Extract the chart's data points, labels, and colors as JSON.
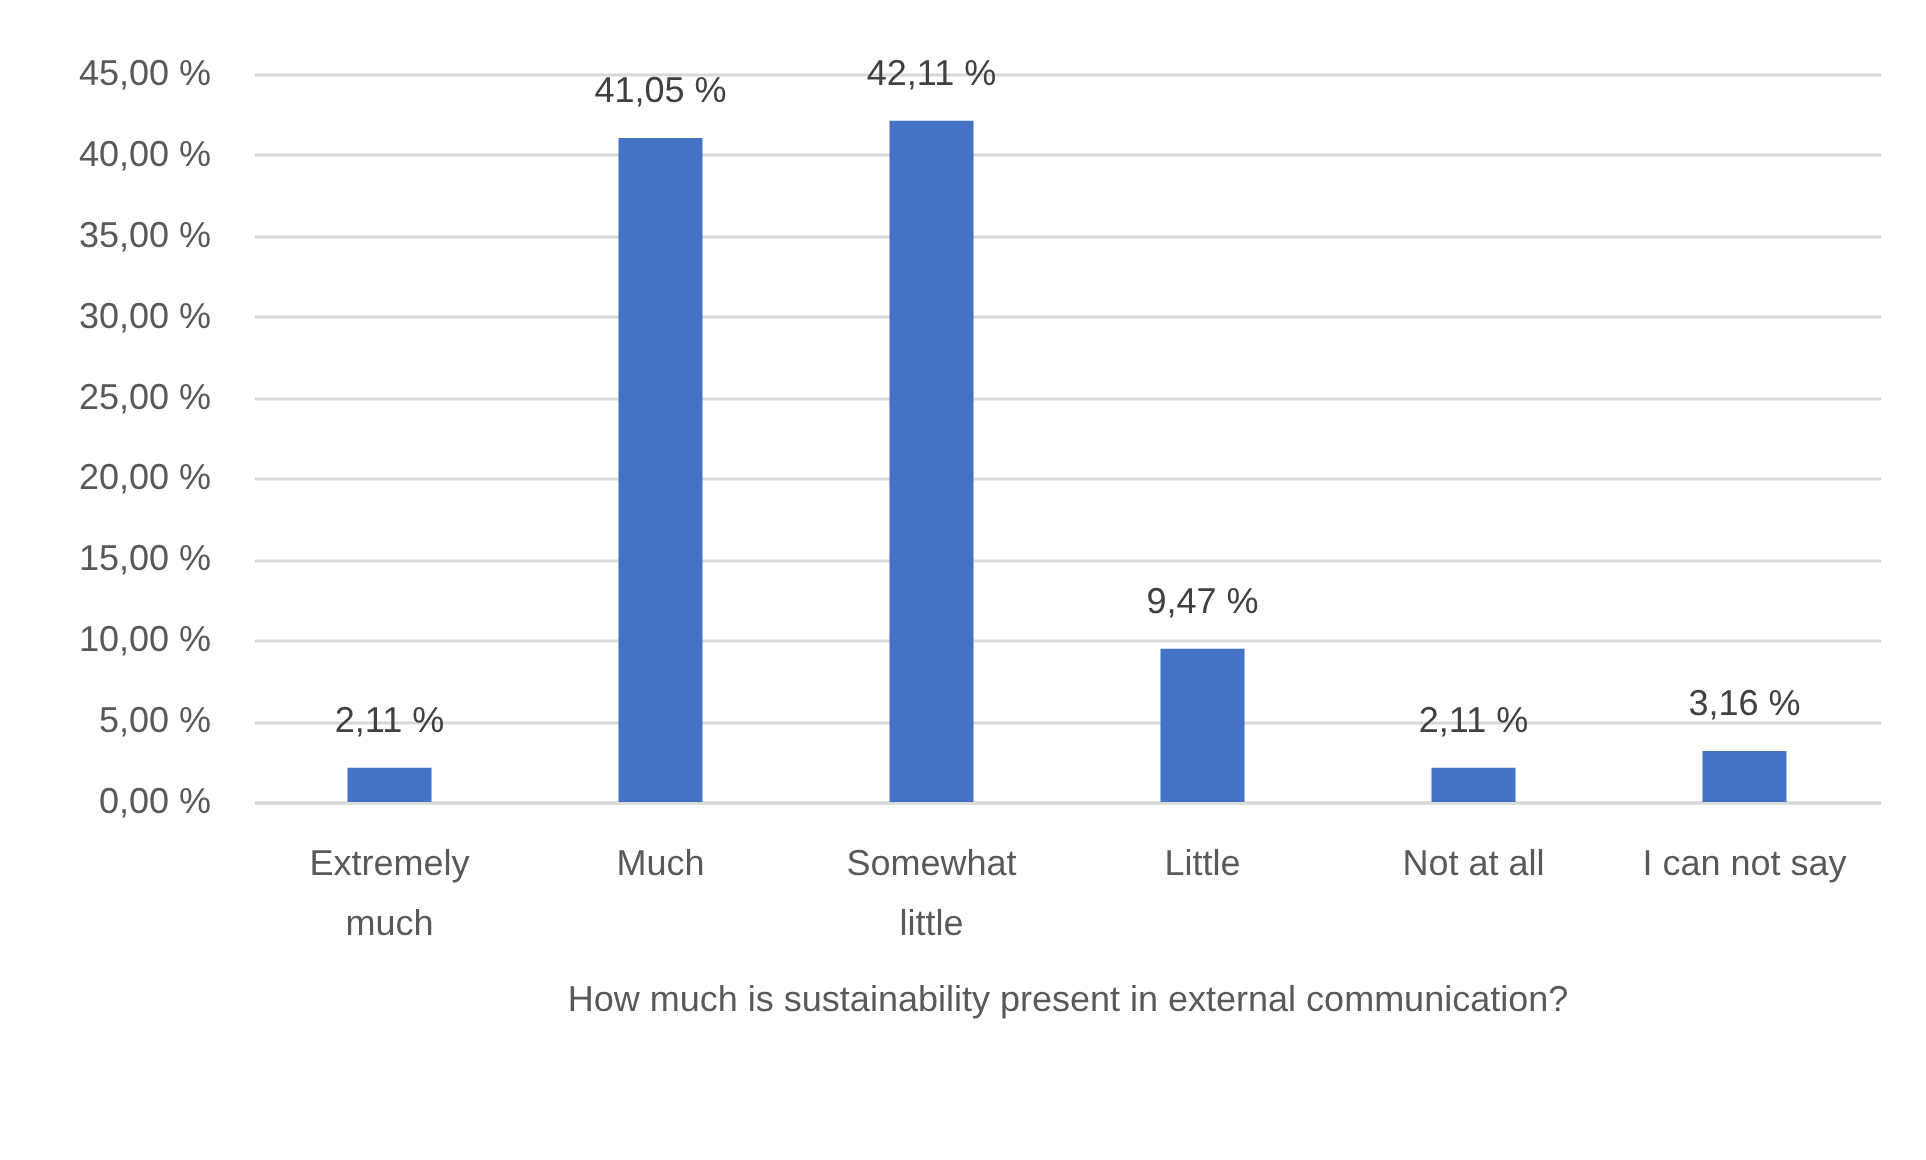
{
  "chart_data": {
    "type": "bar",
    "xlabel": "How much is sustainability present in external communication?",
    "categories": [
      "Extremely much",
      "Much",
      "Somewhat little",
      "Little",
      "Not at all",
      "I can not say"
    ],
    "values": [
      2.11,
      41.05,
      42.11,
      9.47,
      2.11,
      3.16
    ],
    "color": "#4472c4",
    "value_labels": [
      "2,11 %",
      "41,05 %",
      "42,11 %",
      "9,47 %",
      "2,11 %",
      "3,16 %"
    ],
    "ylim": [
      0,
      45
    ],
    "yticks": [
      {
        "value": 0,
        "label": "0,00 %"
      },
      {
        "value": 5,
        "label": "5,00 %"
      },
      {
        "value": 10,
        "label": "10,00 %"
      },
      {
        "value": 15,
        "label": "15,00 %"
      },
      {
        "value": 20,
        "label": "20,00 %"
      },
      {
        "value": 25,
        "label": "25,00 %"
      },
      {
        "value": 30,
        "label": "30,00 %"
      },
      {
        "value": 35,
        "label": "35,00 %"
      },
      {
        "value": 40,
        "label": "40,00 %"
      },
      {
        "value": 45,
        "label": "45,00 %"
      }
    ],
    "grid": "y"
  }
}
